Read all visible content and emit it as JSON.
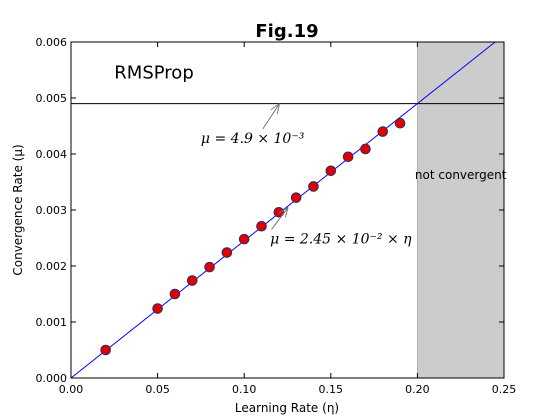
{
  "chart_data": {
    "type": "scatter",
    "title": "Fig.19",
    "method_label": "RMSProp",
    "xlabel": "Learning Rate (η)",
    "ylabel": "Convergence Rate (μ)",
    "xlim": [
      0.0,
      0.25
    ],
    "ylim": [
      0.0,
      0.006
    ],
    "x_ticks": [
      0.0,
      0.05,
      0.1,
      0.15,
      0.2,
      0.25
    ],
    "x_tick_labels": [
      "0.00",
      "0.05",
      "0.10",
      "0.15",
      "0.20",
      "0.25"
    ],
    "y_ticks": [
      0.0,
      0.001,
      0.002,
      0.003,
      0.004,
      0.005,
      0.006
    ],
    "y_tick_labels": [
      "0.000",
      "0.001",
      "0.002",
      "0.003",
      "0.004",
      "0.005",
      "0.006"
    ],
    "grid": false,
    "points": {
      "x": [
        0.02,
        0.05,
        0.06,
        0.07,
        0.08,
        0.09,
        0.1,
        0.11,
        0.12,
        0.13,
        0.14,
        0.15,
        0.16,
        0.17,
        0.18,
        0.19
      ],
      "y": [
        0.0005,
        0.00124,
        0.0015,
        0.00174,
        0.00198,
        0.00224,
        0.00248,
        0.00271,
        0.00296,
        0.00322,
        0.00342,
        0.0037,
        0.00395,
        0.00409,
        0.0044,
        0.00455
      ],
      "color": "#e00000",
      "edge_color": "#2a2a6e"
    },
    "fit_line": {
      "slope": 0.0245,
      "intercept": 0.0,
      "color": "#0000ff"
    },
    "hline": {
      "y": 0.0049,
      "color": "#000000"
    },
    "shaded_region": {
      "x_start": 0.2,
      "x_end": 0.25,
      "label": "not convergent",
      "color": "#cccccc"
    },
    "annotations": [
      {
        "text": "μ = 4.9 × 10⁻³",
        "text_x": 0.075,
        "text_y": 0.0042,
        "arrow_to_x": 0.12,
        "arrow_to_y": 0.0049
      },
      {
        "text": "μ = 2.45 × 10⁻² × η",
        "text_x": 0.115,
        "text_y": 0.0024,
        "arrow_to_x": 0.125,
        "arrow_to_y": 0.00305
      }
    ]
  }
}
